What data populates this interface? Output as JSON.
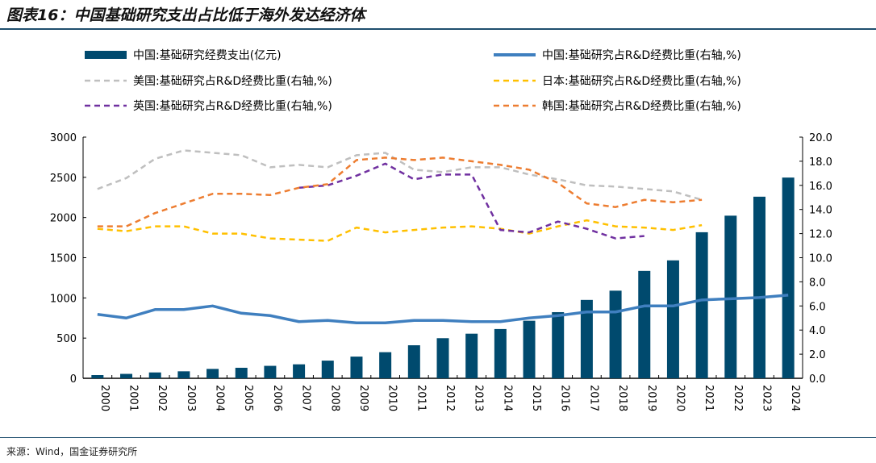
{
  "title": "图表16：中国基础研究支出占比低于海外发达经济体",
  "source": "来源：Wind，国金证券研究所",
  "chart_data": {
    "type": "bar+line",
    "categories": [
      "2000",
      "2001",
      "2002",
      "2003",
      "2004",
      "2005",
      "2006",
      "2007",
      "2008",
      "2009",
      "2010",
      "2011",
      "2012",
      "2013",
      "2014",
      "2015",
      "2016",
      "2017",
      "2018",
      "2019",
      "2020",
      "2021",
      "2022",
      "2023",
      "2024"
    ],
    "left_axis": {
      "ylim": [
        0,
        3000
      ],
      "ticks": [
        "0",
        "500",
        "1000",
        "1500",
        "2000",
        "2500",
        "3000"
      ]
    },
    "right_axis": {
      "ylim": [
        0,
        20
      ],
      "ticks": [
        "0.0",
        "2.0",
        "4.0",
        "6.0",
        "8.0",
        "10.0",
        "12.0",
        "14.0",
        "16.0",
        "18.0",
        "20.0"
      ]
    },
    "legend_position": "top",
    "grid": false,
    "series": [
      {
        "name": "中国:基础研究经费支出(亿元)",
        "type": "bar",
        "axis": "left",
        "color": "#004a6e",
        "values": [
          40,
          55,
          73,
          87,
          117,
          131,
          155,
          174,
          220,
          270,
          325,
          411,
          499,
          555,
          613,
          716,
          823,
          975,
          1090,
          1336,
          1467,
          1817,
          2023,
          2259,
          2497
        ]
      },
      {
        "name": "中国:基础研究占R&D经费比重(右轴,%)",
        "type": "line",
        "axis": "right",
        "color": "#3f7fbf",
        "dash": false,
        "values": [
          5.3,
          5.0,
          5.7,
          5.7,
          6.0,
          5.4,
          5.2,
          4.7,
          4.8,
          4.6,
          4.6,
          4.8,
          4.8,
          4.7,
          4.7,
          5.0,
          5.2,
          5.5,
          5.5,
          6.0,
          6.0,
          6.5,
          6.6,
          6.7,
          6.9
        ]
      },
      {
        "name": "美国:基础研究占R&D经费比重(右轴,%)",
        "type": "line",
        "axis": "right",
        "color": "#bfbfbf",
        "dash": true,
        "values": [
          15.7,
          16.6,
          18.2,
          18.9,
          18.7,
          18.5,
          17.5,
          17.7,
          17.5,
          18.5,
          18.7,
          17.3,
          17.1,
          17.5,
          17.5,
          16.9,
          16.5,
          16.0,
          15.9,
          15.7,
          15.5,
          14.8,
          null,
          null,
          null
        ]
      },
      {
        "name": "日本:基础研究占R&D经费比重(右轴,%)",
        "type": "line",
        "axis": "right",
        "color": "#ffc000",
        "dash": true,
        "values": [
          12.4,
          12.2,
          12.6,
          12.6,
          12.0,
          12.0,
          11.6,
          11.5,
          11.4,
          12.5,
          12.1,
          12.3,
          12.5,
          12.6,
          12.4,
          12.0,
          12.6,
          13.1,
          12.6,
          12.5,
          12.3,
          12.7,
          null,
          null,
          null
        ]
      },
      {
        "name": "英国:基础研究占R&D经费比重(右轴,%)",
        "type": "line",
        "axis": "right",
        "color": "#7030a0",
        "dash": true,
        "values": [
          null,
          null,
          null,
          null,
          null,
          null,
          null,
          15.8,
          16.0,
          16.8,
          17.8,
          16.5,
          16.9,
          16.9,
          12.3,
          12.1,
          13.0,
          12.4,
          11.6,
          11.8,
          null,
          null,
          null,
          null,
          null
        ]
      },
      {
        "name": "韩国:基础研究占R&D经费比重(右轴,%)",
        "type": "line",
        "axis": "right",
        "color": "#ed7d31",
        "dash": true,
        "values": [
          12.6,
          12.6,
          13.7,
          14.5,
          15.3,
          15.3,
          15.2,
          15.8,
          16.1,
          18.1,
          18.3,
          18.1,
          18.3,
          18.0,
          17.7,
          17.3,
          16.2,
          14.5,
          14.2,
          14.8,
          14.6,
          14.8,
          null,
          null,
          null
        ]
      }
    ]
  }
}
